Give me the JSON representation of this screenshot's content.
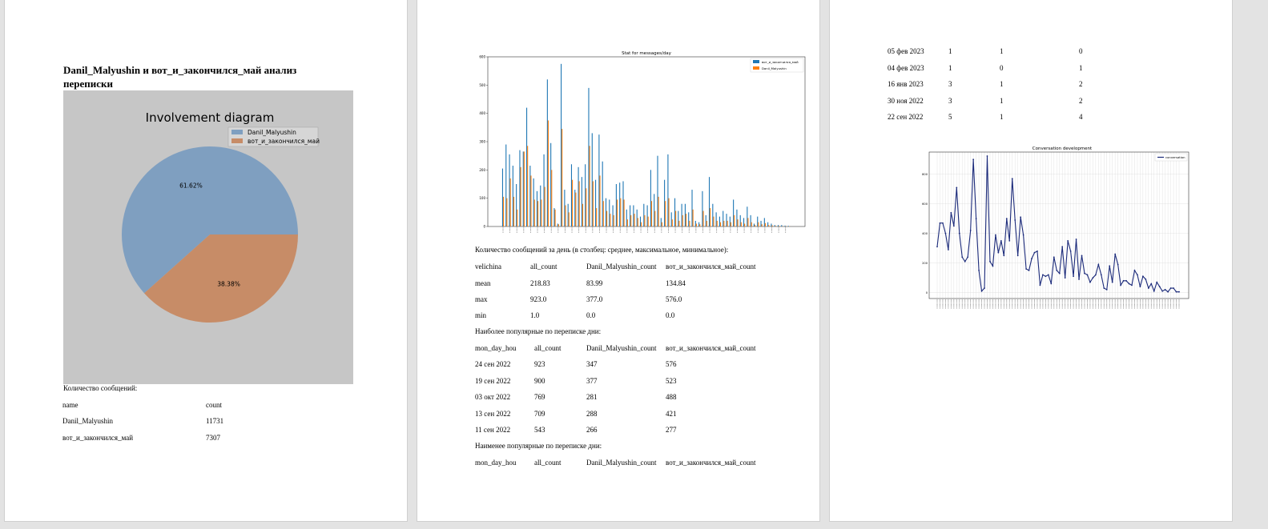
{
  "page1": {
    "title": "Danil_Malyushin и вот_и_закончился_май анализ переписки",
    "pie_title": "Involvement diagram",
    "msg_count_label": "Количество сообщений:",
    "count_table": {
      "headers": [
        "name",
        "count"
      ],
      "rows": [
        [
          "Danil_Malyushin",
          "11731"
        ],
        [
          "вот_и_закончился_май",
          "7307"
        ]
      ]
    }
  },
  "page2": {
    "bar_title": "Stat for messages/day",
    "daily_label": "Количество сообщений за день (в столбец: среднее, максимальное, минимальное):",
    "stats_table": {
      "headers": [
        "velichina",
        "all_count",
        "Danil_Malyushin_count",
        "вот_и_закончился_май_count"
      ],
      "rows": [
        [
          "mean",
          "218.83",
          "83.99",
          "134.84"
        ],
        [
          "max",
          "923.0",
          "377.0",
          "576.0"
        ],
        [
          "min",
          "1.0",
          "0.0",
          "0.0"
        ]
      ]
    },
    "popular_label": "Наиболее популярные по переписке дни:",
    "popular_table": {
      "headers": [
        "mon_day_hou",
        "all_count",
        "Danil_Malyushin_count",
        "вот_и_закончился_май_count"
      ],
      "rows": [
        [
          "24 сен 2022",
          "923",
          "347",
          "576"
        ],
        [
          "19 сен 2022",
          "900",
          "377",
          "523"
        ],
        [
          "03 окт 2022",
          "769",
          "281",
          "488"
        ],
        [
          "13 сен 2022",
          "709",
          "288",
          "421"
        ],
        [
          "11 сен 2022",
          "543",
          "266",
          "277"
        ]
      ]
    },
    "least_label": "Наименее популярные по переписке дни:",
    "least_headers": [
      "mon_day_hou",
      "all_count",
      "Danil_Malyushin_count",
      "вот_и_закончился_май_count"
    ]
  },
  "page3": {
    "least_rows": [
      [
        "05 фев 2023",
        "1",
        "1",
        "0"
      ],
      [
        "04 фев 2023",
        "1",
        "0",
        "1"
      ],
      [
        "16 янв 2023",
        "3",
        "1",
        "2"
      ],
      [
        "30 ноя 2022",
        "3",
        "1",
        "2"
      ],
      [
        "22 сен 2022",
        "5",
        "1",
        "4"
      ]
    ],
    "line_title": "Conversation development"
  },
  "chart_data": [
    {
      "type": "pie",
      "title": "Involvement diagram",
      "labels": [
        "Danil_Malyushin",
        "вот_и_закончился_май"
      ],
      "values": [
        61.62,
        38.38
      ],
      "value_labels": [
        "61.62%",
        "38.38%"
      ],
      "colors": [
        "#7f9fc0",
        "#c78c67"
      ],
      "background": "#c6c6c6",
      "legend": "top-right"
    },
    {
      "type": "bar",
      "title": "Stat for messages/day",
      "ylim": [
        0,
        600
      ],
      "yticks": [
        0,
        100,
        200,
        300,
        400,
        500,
        600
      ],
      "legend": "top-right",
      "series": [
        {
          "name": "вот_и_закончился_май",
          "color": "#1f77b4",
          "values": [
            205,
            290,
            255,
            215,
            150,
            270,
            265,
            420,
            215,
            170,
            125,
            145,
            255,
            520,
            295,
            65,
            10,
            575,
            130,
            80,
            220,
            130,
            210,
            175,
            220,
            490,
            330,
            165,
            325,
            230,
            100,
            95,
            75,
            150,
            155,
            160,
            60,
            75,
            75,
            60,
            35,
            80,
            75,
            200,
            115,
            250,
            30,
            165,
            255,
            50,
            100,
            55,
            80,
            80,
            50,
            130,
            20,
            15,
            125,
            40,
            175,
            80,
            50,
            35,
            55,
            45,
            35,
            95,
            60,
            40,
            30,
            70,
            40,
            10,
            35,
            20,
            30,
            15,
            10,
            5,
            5,
            5,
            3,
            2
          ]
        },
        {
          "name": "Danil_Malyushin",
          "color": "#ff7f0e",
          "values": [
            105,
            100,
            170,
            105,
            60,
            210,
            265,
            285,
            180,
            95,
            90,
            95,
            140,
            375,
            200,
            60,
            8,
            345,
            75,
            50,
            165,
            120,
            160,
            80,
            135,
            285,
            160,
            65,
            180,
            90,
            55,
            45,
            40,
            95,
            100,
            95,
            25,
            40,
            45,
            30,
            15,
            40,
            35,
            90,
            55,
            105,
            15,
            90,
            100,
            25,
            55,
            20,
            40,
            45,
            20,
            60,
            10,
            8,
            55,
            20,
            65,
            35,
            20,
            15,
            20,
            20,
            15,
            40,
            25,
            15,
            10,
            30,
            15,
            5,
            15,
            8,
            12,
            5,
            4,
            2,
            2,
            1,
            1,
            1
          ]
        }
      ]
    },
    {
      "type": "line",
      "title": "Conversation development",
      "yticks": [
        0,
        200,
        400,
        600,
        800
      ],
      "ylim": [
        0,
        950
      ],
      "legend": "top-right",
      "series": [
        {
          "name": "conversation",
          "color": "#1b2a7a",
          "values": [
            310,
            470,
            470,
            400,
            290,
            540,
            450,
            710,
            400,
            240,
            210,
            240,
            420,
            900,
            500,
            150,
            10,
            30,
            923,
            210,
            180,
            390,
            270,
            350,
            250,
            500,
            350,
            770,
            490,
            250,
            510,
            390,
            160,
            150,
            230,
            270,
            280,
            50,
            120,
            110,
            120,
            60,
            240,
            150,
            130,
            310,
            100,
            350,
            280,
            110,
            360,
            90,
            250,
            130,
            120,
            70,
            100,
            120,
            190,
            120,
            30,
            20,
            180,
            70,
            260,
            190,
            50,
            80,
            80,
            60,
            50,
            150,
            120,
            40,
            110,
            90,
            30,
            60,
            10,
            70,
            40,
            10,
            20,
            5,
            30,
            30,
            5,
            5
          ]
        }
      ]
    }
  ]
}
